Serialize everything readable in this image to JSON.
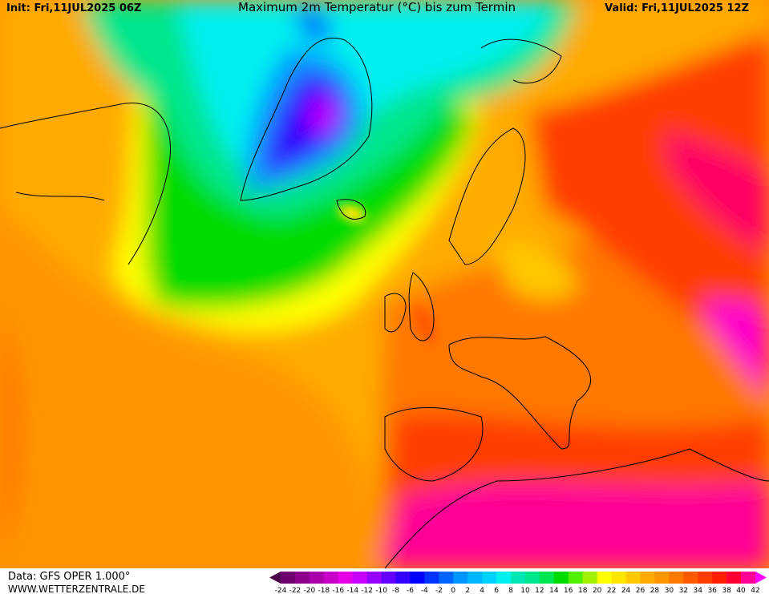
{
  "header": {
    "init": "Init: Fri,11JUL2025 06Z",
    "title": "Maximum 2m Temperatur (°C) bis zum Termin",
    "valid": "Valid: Fri,11JUL2025 12Z"
  },
  "footer": {
    "data": "Data: GFS OPER 1.000°",
    "site": "WWW.WETTERZENTRALE.DE"
  },
  "legend": {
    "values": [
      -24,
      -22,
      -20,
      -18,
      -16,
      -14,
      -12,
      -10,
      -8,
      -6,
      -4,
      -2,
      0,
      2,
      4,
      6,
      8,
      10,
      12,
      14,
      16,
      18,
      20,
      22,
      24,
      26,
      28,
      30,
      32,
      34,
      36,
      38,
      40,
      42
    ],
    "colors": [
      "#4b004b",
      "#6e006e",
      "#8c008c",
      "#aa00aa",
      "#c800c8",
      "#e600e6",
      "#c800ff",
      "#9600ff",
      "#6400ff",
      "#3200ff",
      "#0000ff",
      "#0032ff",
      "#0064ff",
      "#0096ff",
      "#00b4ff",
      "#00d2ff",
      "#00f0f0",
      "#00e6b4",
      "#00e68c",
      "#00e650",
      "#00dc00",
      "#50f000",
      "#a0f000",
      "#ffff00",
      "#ffe600",
      "#ffc800",
      "#ffaa00",
      "#ff9600",
      "#ff7800",
      "#ff5a00",
      "#ff3c00",
      "#ff1e00",
      "#ff0032",
      "#ff0096",
      "#ff00ff"
    ]
  }
}
